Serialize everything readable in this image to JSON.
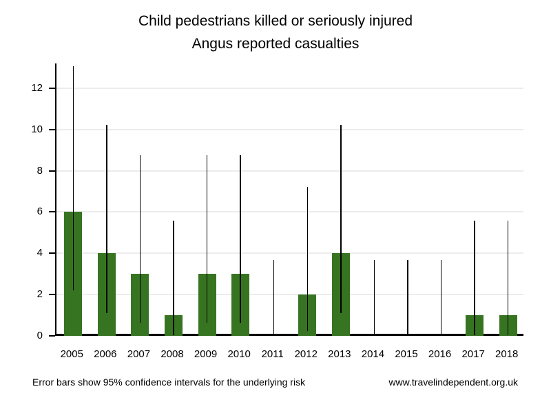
{
  "title": {
    "line1": "Child pedestrians killed or seriously injured",
    "line2": "Angus reported casualties"
  },
  "footer": {
    "note": "Error bars show 95% confidence intervals for the underlying risk",
    "website": "www.travelindependent.org.uk"
  },
  "colors": {
    "bar": "#377422",
    "error_bar": "#000000",
    "gridline": "#ececec",
    "axis": "#000000",
    "text": "#000000"
  },
  "chart_data": {
    "type": "bar",
    "title": "Child pedestrians killed or seriously injured",
    "subtitle": "Angus reported casualties",
    "xlabel": "",
    "ylabel": "",
    "categories": [
      "2005",
      "2006",
      "2007",
      "2008",
      "2009",
      "2010",
      "2011",
      "2012",
      "2013",
      "2014",
      "2015",
      "2016",
      "2017",
      "2018"
    ],
    "values": [
      6,
      4,
      3,
      1,
      3,
      3,
      0,
      2,
      4,
      0,
      0,
      0,
      1,
      1
    ],
    "error_low": [
      2.2,
      1.09,
      0.62,
      0.03,
      0.62,
      0.62,
      0.0,
      0.24,
      1.09,
      0.0,
      0.0,
      0.0,
      0.03,
      0.03
    ],
    "error_high": [
      13.06,
      10.24,
      8.77,
      5.57,
      8.77,
      8.77,
      3.69,
      7.22,
      10.24,
      3.69,
      3.69,
      3.69,
      5.57,
      5.57
    ],
    "ylim": [
      0,
      13.2
    ],
    "yticks": [
      0,
      2,
      4,
      6,
      8,
      10,
      12
    ],
    "grid": "horizontal-only",
    "legend": false,
    "error_bars": "95% confidence intervals"
  }
}
